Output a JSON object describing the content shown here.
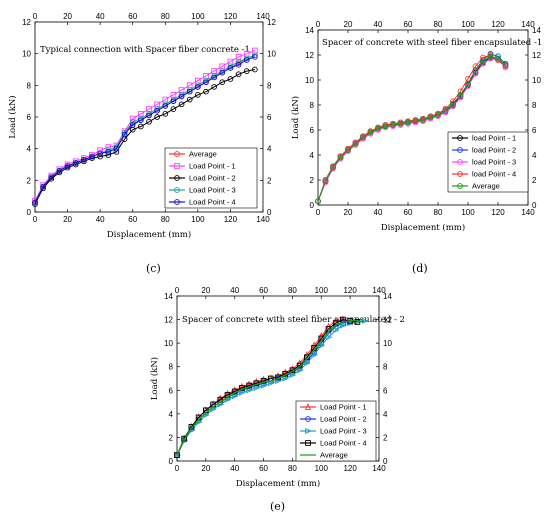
{
  "chart_data": [
    {
      "id": "c",
      "type": "line",
      "panel_label": "(c)",
      "title": "Typical connection with Spacer fiber concrete -1",
      "xlabel": "Displacement (mm)",
      "ylabel": "Load (kN)",
      "xlim": [
        0,
        140
      ],
      "ylim": [
        0,
        12
      ],
      "xticks": [
        0,
        20,
        40,
        60,
        80,
        100,
        120,
        140
      ],
      "yticks": [
        0,
        2,
        4,
        6,
        8,
        10,
        12
      ],
      "legend_position": "bottom-right",
      "x": [
        0,
        5,
        10,
        15,
        20,
        25,
        30,
        35,
        40,
        45,
        50,
        55,
        60,
        65,
        70,
        75,
        80,
        85,
        90,
        95,
        100,
        105,
        110,
        115,
        120,
        125,
        130,
        135
      ],
      "series": [
        {
          "name": "Average",
          "color": "#ff3030",
          "marker": "circle",
          "values": [
            0.6,
            1.6,
            2.2,
            2.6,
            2.9,
            3.1,
            3.3,
            3.5,
            3.7,
            3.8,
            4.0,
            4.9,
            5.6,
            5.8,
            6.1,
            6.4,
            6.7,
            7.0,
            7.3,
            7.6,
            7.9,
            8.2,
            8.5,
            8.8,
            9.1,
            9.4,
            9.7,
            9.9
          ]
        },
        {
          "name": "Load Point - 1",
          "color": "#ff40ff",
          "marker": "square",
          "values": [
            0.7,
            1.7,
            2.3,
            2.7,
            3.0,
            3.2,
            3.4,
            3.6,
            3.9,
            4.1,
            4.2,
            5.1,
            5.9,
            6.2,
            6.5,
            6.8,
            7.1,
            7.4,
            7.7,
            8.0,
            8.3,
            8.6,
            8.9,
            9.2,
            9.5,
            9.8,
            10.0,
            10.2
          ]
        },
        {
          "name": "Load Point - 2",
          "color": "#000000",
          "marker": "circle",
          "values": [
            0.5,
            1.5,
            2.1,
            2.5,
            2.8,
            3.0,
            3.2,
            3.4,
            3.5,
            3.6,
            3.8,
            4.6,
            5.2,
            5.4,
            5.7,
            6.0,
            6.2,
            6.5,
            6.8,
            7.1,
            7.4,
            7.6,
            7.9,
            8.2,
            8.4,
            8.7,
            8.9,
            9.0
          ]
        },
        {
          "name": "Load Point - 3",
          "color": "#20a0a0",
          "marker": "circle",
          "values": [
            0.6,
            1.6,
            2.2,
            2.6,
            2.9,
            3.1,
            3.3,
            3.5,
            3.7,
            3.9,
            4.1,
            5.0,
            5.7,
            5.9,
            6.2,
            6.5,
            6.8,
            7.1,
            7.4,
            7.7,
            8.0,
            8.3,
            8.6,
            8.9,
            9.2,
            9.5,
            9.7,
            9.9
          ]
        },
        {
          "name": "Load Point - 4",
          "color": "#1010d0",
          "marker": "circle",
          "values": [
            0.6,
            1.6,
            2.2,
            2.6,
            2.9,
            3.1,
            3.3,
            3.5,
            3.7,
            3.8,
            4.0,
            4.9,
            5.5,
            5.8,
            6.1,
            6.4,
            6.7,
            7.0,
            7.3,
            7.6,
            7.9,
            8.2,
            8.5,
            8.8,
            9.1,
            9.3,
            9.6,
            9.8
          ]
        }
      ]
    },
    {
      "id": "d",
      "type": "line",
      "panel_label": "(d)",
      "title": "Spacer of concrete with steel fiber encapsulated -1",
      "xlabel": "Displacement (mm)",
      "ylabel": "Load (kN)",
      "xlim": [
        0,
        140
      ],
      "ylim": [
        0,
        14
      ],
      "xticks": [
        0,
        20,
        40,
        60,
        80,
        100,
        120,
        140
      ],
      "yticks": [
        0,
        2,
        4,
        6,
        8,
        10,
        12,
        14
      ],
      "legend_position": "bottom-right",
      "x": [
        0,
        5,
        10,
        15,
        20,
        25,
        30,
        35,
        40,
        45,
        50,
        55,
        60,
        65,
        70,
        75,
        80,
        85,
        90,
        95,
        100,
        105,
        110,
        115,
        120,
        125
      ],
      "series": [
        {
          "name": "load Point - 1",
          "color": "#000000",
          "marker": "circle",
          "values": [
            0.3,
            1.9,
            3.0,
            3.8,
            4.4,
            4.9,
            5.4,
            5.8,
            6.1,
            6.3,
            6.4,
            6.5,
            6.6,
            6.7,
            6.8,
            7.0,
            7.2,
            7.5,
            8.0,
            8.7,
            9.6,
            10.6,
            11.4,
            11.8,
            11.7,
            11.2
          ]
        },
        {
          "name": "load Point - 2",
          "color": "#1040ff",
          "marker": "circle",
          "values": [
            0.3,
            2.0,
            3.1,
            3.9,
            4.5,
            5.0,
            5.5,
            5.9,
            6.2,
            6.4,
            6.5,
            6.6,
            6.7,
            6.8,
            6.9,
            7.1,
            7.3,
            7.6,
            8.1,
            8.8,
            9.7,
            10.8,
            11.6,
            12.1,
            11.9,
            11.3
          ]
        },
        {
          "name": "load Point - 3",
          "color": "#ff40ff",
          "marker": "circle",
          "values": [
            0.3,
            1.8,
            2.9,
            3.7,
            4.3,
            4.8,
            5.3,
            5.7,
            6.0,
            6.2,
            6.3,
            6.4,
            6.5,
            6.6,
            6.7,
            6.9,
            7.1,
            7.4,
            7.9,
            8.6,
            9.5,
            10.5,
            11.3,
            11.7,
            11.6,
            11.0
          ]
        },
        {
          "name": "load Point - 4",
          "color": "#ff3030",
          "marker": "circle",
          "values": [
            0.3,
            2.0,
            3.1,
            3.9,
            4.5,
            5.0,
            5.5,
            5.9,
            6.2,
            6.4,
            6.5,
            6.6,
            6.7,
            6.8,
            6.9,
            7.1,
            7.3,
            7.7,
            8.3,
            9.1,
            10.1,
            11.1,
            11.8,
            12.0,
            11.6,
            11.1
          ]
        },
        {
          "name": "Average",
          "color": "#10a010",
          "marker": "circle",
          "values": [
            0.3,
            1.9,
            3.0,
            3.8,
            4.4,
            4.9,
            5.4,
            5.8,
            6.1,
            6.3,
            6.4,
            6.5,
            6.6,
            6.7,
            6.8,
            7.0,
            7.2,
            7.5,
            8.1,
            8.8,
            9.7,
            10.7,
            11.5,
            11.9,
            11.7,
            11.2
          ]
        }
      ]
    },
    {
      "id": "e",
      "type": "line",
      "panel_label": "(e)",
      "title": "Spacer of concrete with steel fiber encapsulated - 2",
      "xlabel": "Displacement (mm)",
      "ylabel": "Load (kN)",
      "xlim": [
        0,
        140
      ],
      "ylim": [
        0,
        14
      ],
      "xticks": [
        0,
        20,
        40,
        60,
        80,
        100,
        120,
        140
      ],
      "yticks": [
        0,
        2,
        4,
        6,
        8,
        10,
        12,
        14
      ],
      "legend_position": "bottom-right",
      "x": [
        0,
        5,
        10,
        15,
        20,
        25,
        30,
        35,
        40,
        45,
        50,
        55,
        60,
        65,
        70,
        75,
        80,
        85,
        90,
        95,
        100,
        105,
        110,
        115,
        120,
        125,
        130
      ],
      "series": [
        {
          "name": "Load Point - 1",
          "color": "#ff3030",
          "marker": "triangle-up",
          "values": [
            0.5,
            1.9,
            2.9,
            3.7,
            4.3,
            4.8,
            5.3,
            5.7,
            6.0,
            6.3,
            6.5,
            6.7,
            6.9,
            7.0,
            7.2,
            7.5,
            7.8,
            8.3,
            9.0,
            9.8,
            10.6,
            11.4,
            11.9,
            12.0,
            11.8,
            null,
            null
          ]
        },
        {
          "name": "Load Point - 2",
          "color": "#1030ff",
          "marker": "circle",
          "values": [
            0.5,
            1.8,
            2.7,
            3.5,
            4.1,
            4.6,
            5.0,
            5.4,
            5.7,
            6.0,
            6.2,
            6.4,
            6.6,
            6.8,
            7.0,
            7.2,
            7.5,
            7.9,
            8.5,
            9.2,
            10.0,
            10.8,
            11.4,
            11.7,
            11.9,
            null,
            null
          ]
        },
        {
          "name": "Load Point - 3",
          "color": "#20a0c0",
          "marker": "triangle-right",
          "values": [
            0.5,
            1.7,
            2.6,
            3.3,
            3.9,
            4.4,
            4.8,
            5.2,
            5.5,
            5.8,
            6.0,
            6.2,
            6.4,
            6.6,
            6.8,
            7.0,
            7.3,
            7.7,
            8.3,
            9.0,
            9.8,
            10.5,
            11.1,
            11.5,
            11.7,
            11.8,
            11.9
          ]
        },
        {
          "name": "Load Point - 4",
          "color": "#000000",
          "marker": "square",
          "values": [
            0.5,
            1.9,
            2.9,
            3.7,
            4.3,
            4.8,
            5.2,
            5.6,
            5.9,
            6.2,
            6.4,
            6.6,
            6.8,
            7.0,
            7.1,
            7.4,
            7.7,
            8.1,
            8.8,
            9.6,
            10.4,
            11.2,
            11.7,
            12.0,
            11.9,
            11.8,
            null
          ]
        },
        {
          "name": "Average",
          "color": "#10a010",
          "marker": "none",
          "values": [
            0.5,
            1.8,
            2.8,
            3.5,
            4.1,
            4.6,
            5.0,
            5.4,
            5.8,
            6.1,
            6.3,
            6.5,
            6.7,
            6.8,
            7.0,
            7.3,
            7.6,
            8.0,
            8.7,
            9.4,
            10.2,
            11.0,
            11.5,
            11.8,
            11.9,
            11.9,
            11.8
          ]
        }
      ]
    }
  ]
}
